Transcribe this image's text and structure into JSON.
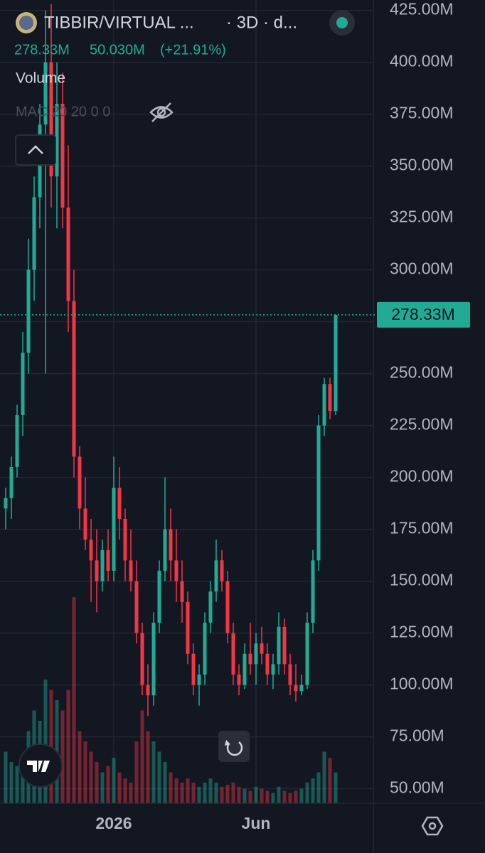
{
  "chart_data": {
    "type": "candlestick",
    "title": "TIBBIR/VIRTUAL ...",
    "subtitle": "· 3D · d...",
    "last_price": {
      "value": 278.33,
      "label": "278.33M"
    },
    "change": "50.030M",
    "change_pct": "(+21.91%)",
    "indicator": "MAC 20 20 0 0",
    "categories": [
      null,
      null,
      null,
      null,
      null,
      null,
      null,
      null,
      null,
      null,
      null,
      null,
      null,
      null,
      null,
      null,
      null,
      null,
      null,
      "2026",
      null,
      null,
      null,
      null,
      null,
      null,
      null,
      null,
      null,
      null,
      null,
      null,
      null,
      null,
      null,
      null,
      null,
      null,
      null,
      null,
      null,
      null,
      null,
      null,
      "Jun",
      null,
      null,
      null,
      null,
      null,
      null,
      null,
      null,
      null,
      null,
      null,
      null,
      null,
      null
    ],
    "open": [
      185,
      190,
      205,
      230,
      260,
      300,
      335,
      370,
      400,
      345,
      380,
      330,
      285,
      210,
      185,
      170,
      160,
      150,
      165,
      155,
      195,
      180,
      160,
      150,
      125,
      100,
      95,
      130,
      155,
      175,
      160,
      150,
      140,
      115,
      100,
      105,
      130,
      145,
      160,
      150,
      125,
      105,
      100,
      115,
      110,
      120,
      115,
      105,
      110,
      128,
      110,
      100,
      97,
      100,
      130,
      160,
      225,
      245,
      232
    ],
    "high": [
      195,
      210,
      235,
      270,
      315,
      345,
      380,
      425,
      428,
      400,
      395,
      360,
      300,
      215,
      200,
      180,
      175,
      170,
      175,
      210,
      205,
      185,
      175,
      160,
      130,
      110,
      135,
      160,
      200,
      185,
      175,
      160,
      145,
      120,
      110,
      135,
      150,
      170,
      165,
      155,
      130,
      110,
      120,
      130,
      125,
      128,
      120,
      115,
      135,
      132,
      115,
      110,
      105,
      135,
      165,
      230,
      248,
      248,
      278.33
    ],
    "low": [
      175,
      180,
      200,
      220,
      250,
      285,
      320,
      250,
      330,
      320,
      320,
      270,
      200,
      175,
      165,
      140,
      135,
      145,
      150,
      150,
      170,
      150,
      145,
      120,
      95,
      85,
      90,
      125,
      150,
      150,
      140,
      130,
      110,
      95,
      90,
      100,
      125,
      140,
      145,
      120,
      100,
      95,
      98,
      105,
      100,
      110,
      100,
      98,
      105,
      105,
      95,
      92,
      95,
      98,
      125,
      155,
      220,
      228,
      230
    ],
    "close": [
      190,
      205,
      230,
      260,
      300,
      335,
      370,
      400,
      345,
      380,
      330,
      285,
      210,
      185,
      170,
      160,
      150,
      165,
      155,
      195,
      180,
      160,
      150,
      125,
      100,
      95,
      130,
      155,
      175,
      160,
      150,
      140,
      115,
      100,
      105,
      130,
      145,
      160,
      150,
      125,
      105,
      100,
      115,
      110,
      120,
      115,
      105,
      110,
      128,
      110,
      100,
      97,
      100,
      130,
      160,
      225,
      245,
      232,
      278.33
    ],
    "up_color": "#22ab94",
    "down_color": "#f23645",
    "ylim": [
      43,
      430
    ],
    "yticks": [
      {
        "value": 50,
        "label": "50.00M"
      },
      {
        "value": 75,
        "label": "75.00M"
      },
      {
        "value": 100,
        "label": "100.00M"
      },
      {
        "value": 125,
        "label": "125.00M"
      },
      {
        "value": 150,
        "label": "150.00M"
      },
      {
        "value": 175,
        "label": "175.00M"
      },
      {
        "value": 200,
        "label": "200.00M"
      },
      {
        "value": 225,
        "label": "225.00M"
      },
      {
        "value": 250,
        "label": "250.00M"
      },
      {
        "value": 275,
        "label": "275.00M"
      },
      {
        "value": 300,
        "label": "300.00M"
      },
      {
        "value": 325,
        "label": "325.00M"
      },
      {
        "value": 350,
        "label": "350.00M"
      },
      {
        "value": 375,
        "label": "375.00M"
      },
      {
        "value": 400,
        "label": "400.00M"
      },
      {
        "value": 425,
        "label": "425.00M"
      }
    ],
    "grid": true,
    "volume": {
      "name": "Volume",
      "lim": [
        0,
        100
      ],
      "values": [
        25,
        20,
        18,
        22,
        35,
        45,
        40,
        60,
        55,
        50,
        45,
        55,
        100,
        35,
        30,
        25,
        20,
        15,
        18,
        22,
        15,
        12,
        10,
        30,
        45,
        35,
        30,
        25,
        20,
        15,
        12,
        10,
        12,
        10,
        8,
        10,
        12,
        10,
        8,
        9,
        10,
        8,
        7,
        6,
        8,
        7,
        6,
        5,
        8,
        6,
        5,
        6,
        7,
        10,
        12,
        15,
        25,
        22,
        15
      ]
    }
  }
}
